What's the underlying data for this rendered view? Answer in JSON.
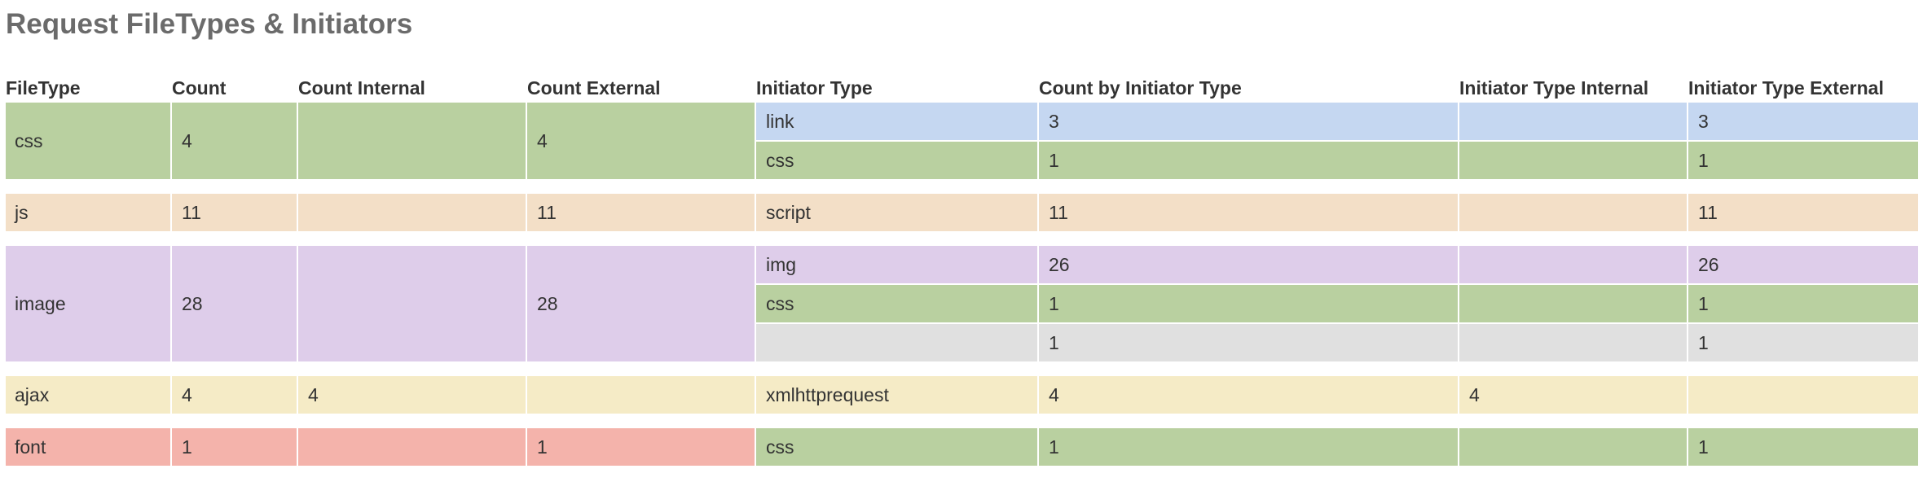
{
  "page": {
    "title": "Request FileTypes & Initiators"
  },
  "table": {
    "headers": [
      "FileType",
      "Count",
      "Count Internal",
      "Count External",
      "Initiator Type",
      "Count by Initiator Type",
      "Initiator Type Internal",
      "Initiator Type External"
    ],
    "groups": [
      {
        "filetype": "css",
        "count": "4",
        "count_internal": "",
        "count_external": "4",
        "color": "#b9d0a0",
        "initiators": [
          {
            "type": "link",
            "count": "3",
            "internal": "",
            "external": "3",
            "color": "#c5d7f1"
          },
          {
            "type": "css",
            "count": "1",
            "internal": "",
            "external": "1",
            "color": "#b9d0a0"
          }
        ]
      },
      {
        "filetype": "js",
        "count": "11",
        "count_internal": "",
        "count_external": "11",
        "color": "#f3dfc7",
        "initiators": [
          {
            "type": "script",
            "count": "11",
            "internal": "",
            "external": "11",
            "color": "#f3dfc7"
          }
        ]
      },
      {
        "filetype": "image",
        "count": "28",
        "count_internal": "",
        "count_external": "28",
        "color": "#decdea",
        "initiators": [
          {
            "type": "img",
            "count": "26",
            "internal": "",
            "external": "26",
            "color": "#decdea"
          },
          {
            "type": "css",
            "count": "1",
            "internal": "",
            "external": "1",
            "color": "#b9d0a0"
          },
          {
            "type": "",
            "count": "1",
            "internal": "",
            "external": "1",
            "color": "#e0e0e0"
          }
        ]
      },
      {
        "filetype": "ajax",
        "count": "4",
        "count_internal": "4",
        "count_external": "",
        "color": "#f5ebc6",
        "initiators": [
          {
            "type": "xmlhttprequest",
            "count": "4",
            "internal": "4",
            "external": "",
            "color": "#f5ebc6"
          }
        ]
      },
      {
        "filetype": "font",
        "count": "1",
        "count_internal": "",
        "count_external": "1",
        "color": "#f4b3ab",
        "initiators": [
          {
            "type": "css",
            "count": "1",
            "internal": "",
            "external": "1",
            "color": "#b9d0a0"
          }
        ]
      }
    ]
  }
}
